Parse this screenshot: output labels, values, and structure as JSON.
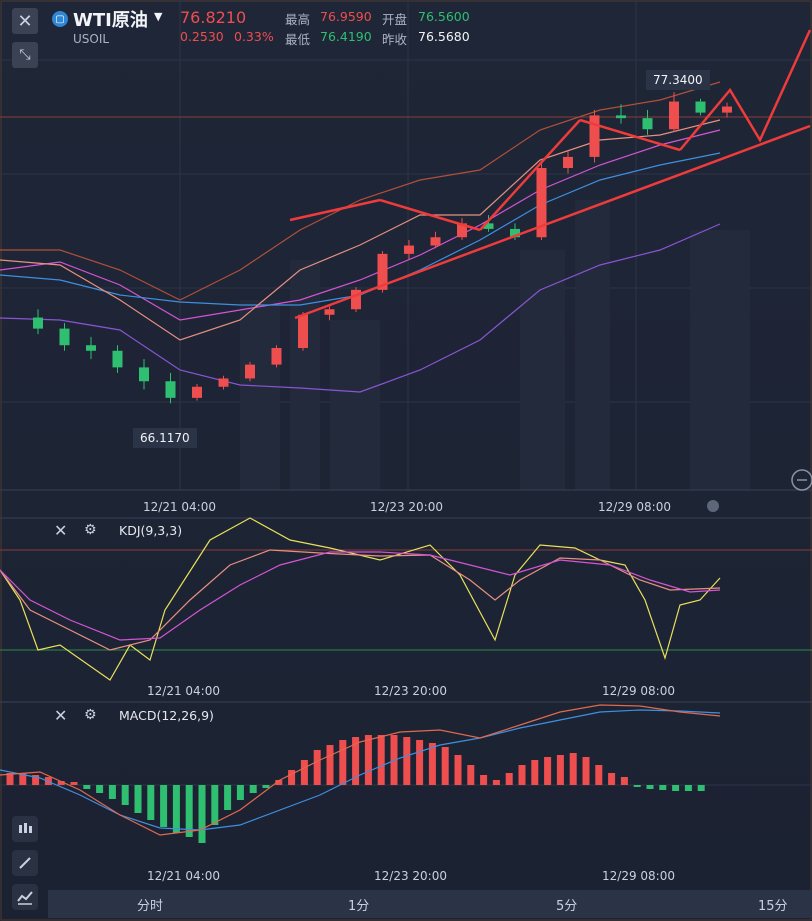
{
  "header": {
    "symbol_name": "WTI原油",
    "symbol_code": "USOIL",
    "price": "76.8210",
    "change": "0.2530",
    "change_pct": "0.33%",
    "high_label": "最高",
    "high_value": "76.9590",
    "open_label": "开盘",
    "open_value": "76.5600",
    "low_label": "最低",
    "low_value": "76.4190",
    "prev_close_label": "昨收",
    "prev_close_value": "76.5680",
    "icons": {
      "close": "close-icon",
      "collapse": "collapse-icon",
      "symbol": "oil-symbol-icon",
      "caret": "caret-down-icon"
    }
  },
  "main_chart": {
    "high_marker": "77.3400",
    "low_marker": "66.1170",
    "time_ticks": [
      "12/21 04:00",
      "12/23 20:00",
      "12/29 08:00"
    ]
  },
  "kdj": {
    "title": "KDJ(9,3,3)",
    "time_ticks": [
      "12/21 04:00",
      "12/23 20:00",
      "12/29 08:00"
    ]
  },
  "macd": {
    "title": "MACD(12,26,9)",
    "time_ticks": [
      "12/21 04:00",
      "12/23 20:00",
      "12/29 08:00"
    ]
  },
  "tabs": [
    "分时",
    "1分",
    "5分",
    "15分"
  ],
  "side_tools": [
    "candlestick-icon",
    "pencil-icon",
    "chart-line-icon"
  ],
  "colors": {
    "up": "#ef4e4e",
    "down": "#2fbf71",
    "bg": "#1b2232"
  },
  "chart_data": {
    "type": "candlestick",
    "candles": [
      [
        69.2,
        69.5,
        68.6,
        68.8
      ],
      [
        68.8,
        69.0,
        68.0,
        68.2
      ],
      [
        68.2,
        68.5,
        67.7,
        68.0
      ],
      [
        68.0,
        68.2,
        67.2,
        67.4
      ],
      [
        67.4,
        67.7,
        66.6,
        66.9
      ],
      [
        66.9,
        67.2,
        66.1,
        66.3
      ],
      [
        66.3,
        66.8,
        66.2,
        66.7
      ],
      [
        66.7,
        67.1,
        66.6,
        67.0
      ],
      [
        67.0,
        67.6,
        66.9,
        67.5
      ],
      [
        67.5,
        68.2,
        67.4,
        68.1
      ],
      [
        68.1,
        69.4,
        68.0,
        69.3
      ],
      [
        69.3,
        69.6,
        69.1,
        69.5
      ],
      [
        69.5,
        70.3,
        69.4,
        70.2
      ],
      [
        70.2,
        71.6,
        70.1,
        71.5
      ],
      [
        71.5,
        72.0,
        71.3,
        71.8
      ],
      [
        71.8,
        72.3,
        71.7,
        72.1
      ],
      [
        72.1,
        72.8,
        72.0,
        72.6
      ],
      [
        72.6,
        72.9,
        72.3,
        72.4
      ],
      [
        72.4,
        72.6,
        72.0,
        72.1
      ],
      [
        72.1,
        74.8,
        72.0,
        74.6
      ],
      [
        74.6,
        75.2,
        74.4,
        75.0
      ],
      [
        75.0,
        76.7,
        74.8,
        76.5
      ],
      [
        76.5,
        76.9,
        76.2,
        76.4
      ],
      [
        76.4,
        76.7,
        75.8,
        76.0
      ],
      [
        76.0,
        77.34,
        75.9,
        77.0
      ],
      [
        77.0,
        77.1,
        76.5,
        76.6
      ],
      [
        76.6,
        76.96,
        76.42,
        76.82
      ]
    ]
  }
}
